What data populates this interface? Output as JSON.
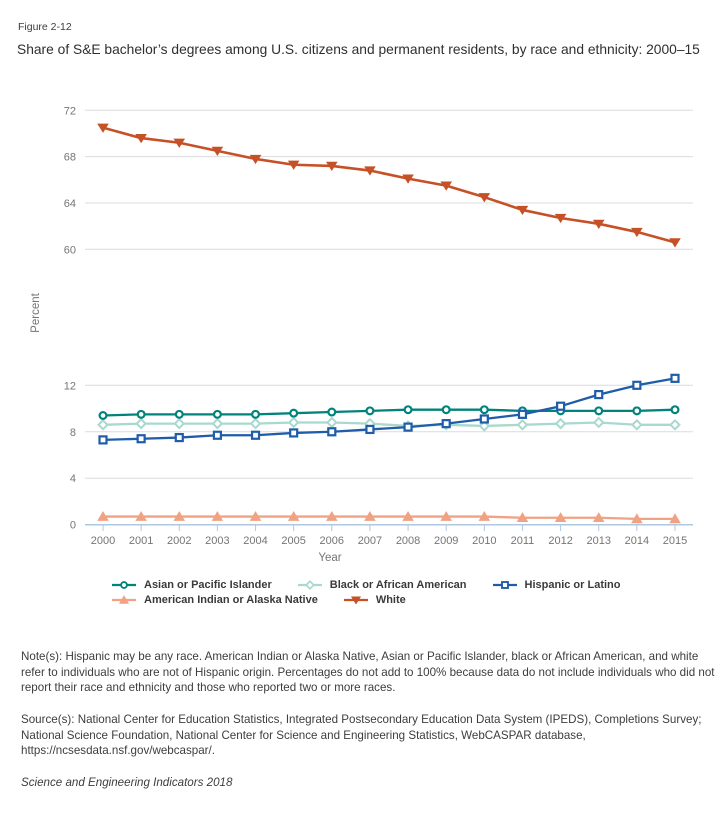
{
  "figure_label": "Figure 2-12",
  "title": "Share of S&E bachelor’s degrees among U.S. citizens and permanent residents, by race and ethnicity: 2000–15",
  "notes": "Note(s): Hispanic may be any race. American Indian or Alaska Native, Asian or Pacific Islander, black or African American, and white refer to individuals who are not of Hispanic origin. Percentages do not add to 100% because data do not include individuals who did not report their race and ethnicity and those who reported two or more races.",
  "source": "Source(s): National Center for Education Statistics, Integrated Postsecondary Education Data System (IPEDS), Completions Survey; National Science Foundation, National Center for Science and Engineering Statistics, WebCASPAR database, https://ncsesdata.nsf.gov/webcaspar/.",
  "footer": "Science and Engineering Indicators 2018",
  "colors": {
    "grid": "#dcdcdc",
    "axis": "#afc8e1",
    "tick_text": "#757575",
    "axis_label_text": "#757575",
    "legend_text": "#3a3a3a"
  },
  "chart_data": {
    "type": "line",
    "title": "Share of S&E bachelor’s degrees among U.S. citizens and permanent residents, by race and ethnicity: 2000–15",
    "xlabel": "Year",
    "ylabel": "Percent",
    "x": [
      2000,
      2001,
      2002,
      2003,
      2004,
      2005,
      2006,
      2007,
      2008,
      2009,
      2010,
      2011,
      2012,
      2013,
      2014,
      2015
    ],
    "axis_break": true,
    "upper_ylim": [
      60,
      72
    ],
    "lower_ylim": [
      0,
      12
    ],
    "upper_ticks": [
      72,
      68,
      64,
      60
    ],
    "lower_ticks": [
      12,
      8,
      4,
      0
    ],
    "grid": true,
    "legend_position": "bottom",
    "series": [
      {
        "name": "Asian or Pacific Islander",
        "band": "lower",
        "color": "#00837b",
        "marker": "circle",
        "marker_fill": "open",
        "draw_order": 2,
        "values": [
          9.4,
          9.5,
          9.5,
          9.5,
          9.5,
          9.6,
          9.7,
          9.8,
          9.9,
          9.9,
          9.9,
          9.8,
          9.8,
          9.8,
          9.8,
          9.9
        ]
      },
      {
        "name": "Black or African American",
        "band": "lower",
        "color": "#a9d8ce",
        "marker": "diamond",
        "marker_fill": "open",
        "draw_order": 1,
        "values": [
          8.6,
          8.7,
          8.7,
          8.7,
          8.7,
          8.8,
          8.8,
          8.7,
          8.5,
          8.6,
          8.5,
          8.6,
          8.7,
          8.8,
          8.6,
          8.6
        ]
      },
      {
        "name": "Hispanic or Latino",
        "band": "lower",
        "color": "#1f5ca9",
        "marker": "square",
        "marker_fill": "open",
        "draw_order": 3,
        "values": [
          7.3,
          7.4,
          7.5,
          7.7,
          7.7,
          7.9,
          8.0,
          8.2,
          8.4,
          8.7,
          9.1,
          9.5,
          10.2,
          11.2,
          12.0,
          12.6
        ]
      },
      {
        "name": "American Indian or Alaska Native",
        "band": "lower",
        "color": "#f0a283",
        "marker": "triangle-up",
        "marker_fill": "solid",
        "draw_order": 4,
        "values": [
          0.7,
          0.7,
          0.7,
          0.7,
          0.7,
          0.7,
          0.7,
          0.7,
          0.7,
          0.7,
          0.7,
          0.6,
          0.6,
          0.6,
          0.5,
          0.5
        ]
      },
      {
        "name": "White",
        "band": "upper",
        "color": "#c65127",
        "marker": "triangle-down",
        "marker_fill": "solid",
        "draw_order": 5,
        "values": [
          70.5,
          69.6,
          69.2,
          68.5,
          67.8,
          67.3,
          67.2,
          66.8,
          66.1,
          65.5,
          64.5,
          63.4,
          62.7,
          62.2,
          61.5,
          60.6
        ]
      }
    ]
  }
}
